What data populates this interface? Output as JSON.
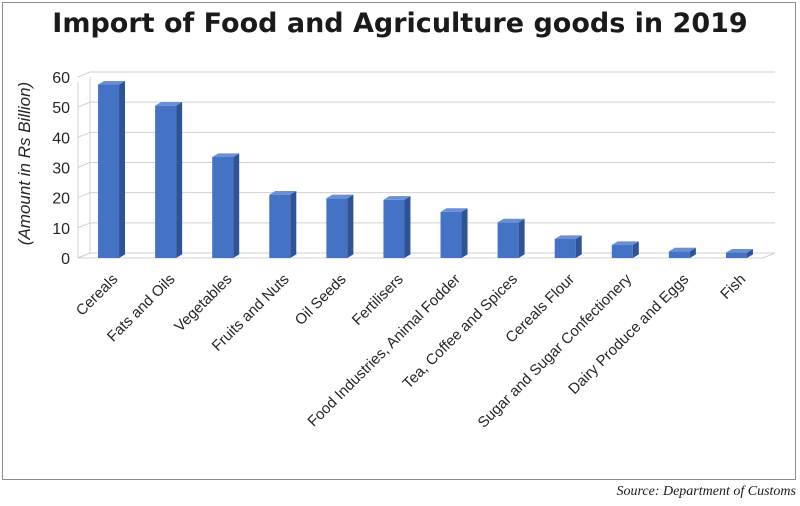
{
  "chart_data": {
    "type": "bar",
    "title": "Import of Food and Agriculture goods in 2019",
    "xlabel": "",
    "ylabel": "(Amount in Rs Billion)",
    "ylim": [
      0,
      60
    ],
    "yticks": [
      0,
      10,
      20,
      30,
      40,
      50,
      60
    ],
    "grid": true,
    "categories": [
      "Cereals",
      "Fats and Oils",
      "Vegetables",
      "Fruits and Nuts",
      "Oil Seeds",
      "Fertilisers",
      "Food Industries, Animal Fodder",
      "Tea, Coffee and Spices",
      "Cereals Flour",
      "Sugar and Sugar Confectionery",
      "Dairy Produce and Eggs",
      "Fish"
    ],
    "values": [
      57.5,
      50.5,
      33.5,
      21,
      19.8,
      19.3,
      15.3,
      11.8,
      6.3,
      4.3,
      2.2,
      1.8
    ],
    "bar_color": "#4472c4"
  },
  "source": "Source: Department of Customs"
}
